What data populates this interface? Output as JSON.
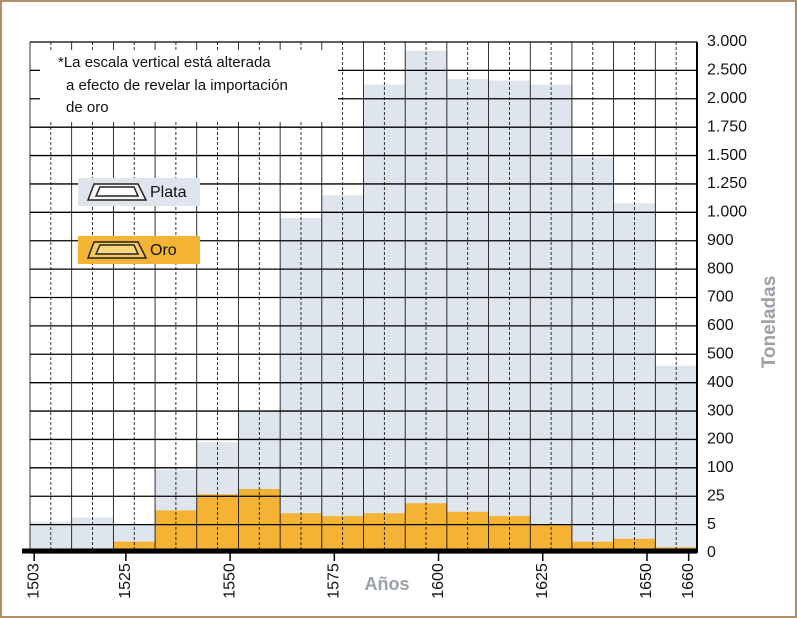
{
  "chart_data": {
    "type": "histogram",
    "note": [
      "*La escala vertical está alterada",
      "a efecto de revelar la importación",
      "de oro"
    ],
    "x_label": "Años",
    "y_label": "Toneladas",
    "bins": [
      1502,
      1512,
      1522,
      1532,
      1542,
      1552,
      1562,
      1572,
      1582,
      1592,
      1602,
      1612,
      1622,
      1632,
      1642,
      1652,
      1662
    ],
    "series": [
      {
        "name": "Plata",
        "color": "#dfe5ec",
        "values": [
          7,
          10,
          5,
          95,
          190,
          300,
          980,
          1150,
          2250,
          2850,
          2350,
          2320,
          2250,
          1480,
          1080,
          460
        ]
      },
      {
        "name": "Oro",
        "color": "#f4b334",
        "values": [
          0,
          0,
          2,
          15,
          30,
          44,
          13,
          11,
          13,
          20,
          14,
          11,
          5,
          2,
          2.5,
          1
        ]
      }
    ],
    "xlim": [
      1502,
      1662
    ],
    "xticks": [
      1503,
      1525,
      1550,
      1575,
      1600,
      1625,
      1650,
      1660
    ],
    "ylim": [
      0,
      3000
    ],
    "yticks": [
      0,
      5,
      25,
      100,
      200,
      300,
      400,
      500,
      600,
      700,
      800,
      900,
      {
        "value": 1000,
        "label": "1.000"
      },
      {
        "value": 1250,
        "label": "1.250"
      },
      {
        "value": 1500,
        "label": "1.500"
      },
      {
        "value": 1750,
        "label": "1.750"
      },
      {
        "value": 2000,
        "label": "2.000"
      },
      {
        "value": 2500,
        "label": "2.500"
      },
      {
        "value": 3000,
        "label": "3.000"
      }
    ],
    "grid": true
  }
}
